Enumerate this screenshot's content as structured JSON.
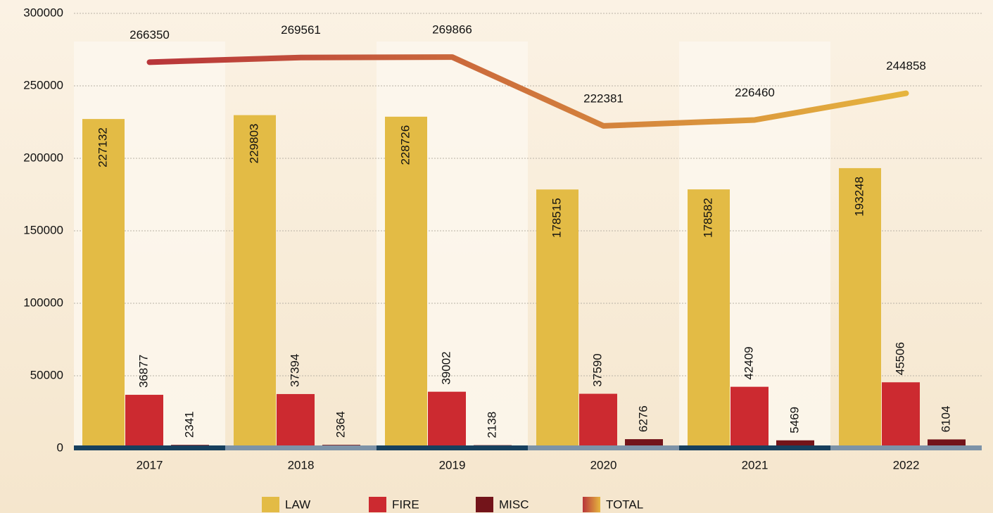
{
  "chart_data": {
    "type": "bar",
    "categories": [
      "2017",
      "2018",
      "2019",
      "2020",
      "2021",
      "2022"
    ],
    "series": [
      {
        "name": "LAW",
        "color": "#e3bb45",
        "values": [
          227132,
          229803,
          228726,
          178515,
          178582,
          193248
        ]
      },
      {
        "name": "FIRE",
        "color": "#cc2a30",
        "values": [
          36877,
          37394,
          39002,
          37590,
          42409,
          45506
        ]
      },
      {
        "name": "MISC",
        "color": "#73141a",
        "values": [
          2341,
          2364,
          2138,
          6276,
          5469,
          6104
        ]
      },
      {
        "name": "TOTAL",
        "type": "line",
        "color": [
          "#b8353a",
          "#e6b53e"
        ],
        "values": [
          266350,
          269561,
          269866,
          222381,
          226460,
          244858
        ]
      }
    ],
    "ylim": [
      0,
      300000
    ],
    "yticks": [
      0,
      50000,
      100000,
      150000,
      200000,
      250000,
      300000
    ],
    "grid": true
  }
}
